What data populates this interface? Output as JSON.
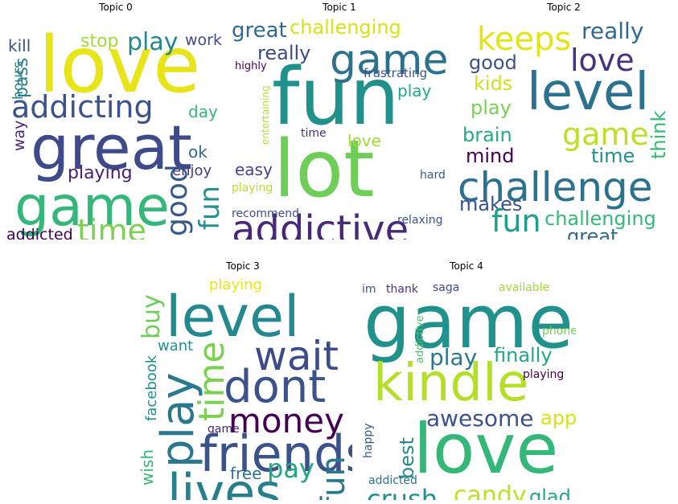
{
  "figure": {
    "panels": [
      {
        "title": "Topic 0",
        "words": [
          {
            "text": "love",
            "color": "#e7e419"
          },
          {
            "text": "great",
            "color": "#3e4a89"
          },
          {
            "text": "game",
            "color": "#35b779"
          },
          {
            "text": "addicting",
            "color": "#3b528b"
          },
          {
            "text": "time",
            "color": "#7ad151"
          },
          {
            "text": "good",
            "color": "#38588c"
          },
          {
            "text": "fun",
            "color": "#21918c"
          },
          {
            "text": "play",
            "color": "#24868e"
          },
          {
            "text": "playing",
            "color": "#482173"
          },
          {
            "text": "stop",
            "color": "#a2da37"
          },
          {
            "text": "kill",
            "color": "#3b528b"
          },
          {
            "text": "pass",
            "color": "#277f8e"
          },
          {
            "text": "hours",
            "color": "#25838e"
          },
          {
            "text": "way",
            "color": "#482878"
          },
          {
            "text": "work",
            "color": "#3e4a89"
          },
          {
            "text": "day",
            "color": "#35b779"
          },
          {
            "text": "ok",
            "color": "#31688e"
          },
          {
            "text": "enjoy",
            "color": "#443983"
          },
          {
            "text": "addicted",
            "color": "#440154"
          }
        ]
      },
      {
        "title": "Topic 1",
        "words": [
          {
            "text": "fun",
            "color": "#21918c"
          },
          {
            "text": "lot",
            "color": "#6ece58"
          },
          {
            "text": "addictive",
            "color": "#482878"
          },
          {
            "text": "game",
            "color": "#2c728e"
          },
          {
            "text": "great",
            "color": "#31688e"
          },
          {
            "text": "challenging",
            "color": "#d8e219"
          },
          {
            "text": "really",
            "color": "#3e4a89"
          },
          {
            "text": "frustrating",
            "color": "#3b528b"
          },
          {
            "text": "highly",
            "color": "#440154"
          },
          {
            "text": "play",
            "color": "#22a884"
          },
          {
            "text": "entertaining",
            "color": "#b5de2b"
          },
          {
            "text": "love",
            "color": "#a2da37"
          },
          {
            "text": "time",
            "color": "#472d7b"
          },
          {
            "text": "easy",
            "color": "#414487"
          },
          {
            "text": "playing",
            "color": "#b5de2b"
          },
          {
            "text": "hard",
            "color": "#38588c"
          },
          {
            "text": "recommend",
            "color": "#3e4a89"
          },
          {
            "text": "relaxing",
            "color": "#3b528b"
          }
        ]
      },
      {
        "title": "Topic 2",
        "words": [
          {
            "text": "keeps",
            "color": "#e2e418"
          },
          {
            "text": "really",
            "color": "#31688e"
          },
          {
            "text": "love",
            "color": "#46327e"
          },
          {
            "text": "level",
            "color": "#2c728e"
          },
          {
            "text": "good",
            "color": "#3b528b"
          },
          {
            "text": "kids",
            "color": "#d0e11c"
          },
          {
            "text": "play",
            "color": "#7ad151"
          },
          {
            "text": "game",
            "color": "#bddf26"
          },
          {
            "text": "think",
            "color": "#38b977"
          },
          {
            "text": "brain",
            "color": "#25ab82"
          },
          {
            "text": "mind",
            "color": "#440154"
          },
          {
            "text": "time",
            "color": "#21918c"
          },
          {
            "text": "challenge",
            "color": "#2c728e"
          },
          {
            "text": "makes",
            "color": "#3b528b"
          },
          {
            "text": "fun",
            "color": "#1f9e89"
          },
          {
            "text": "challenging",
            "color": "#35b779"
          },
          {
            "text": "great",
            "color": "#31688e"
          }
        ]
      },
      {
        "title": "Topic 3",
        "words": [
          {
            "text": "level",
            "color": "#23898e"
          },
          {
            "text": "playing",
            "color": "#e7e419"
          },
          {
            "text": "buy",
            "color": "#6ece58"
          },
          {
            "text": "wait",
            "color": "#3e4a89"
          },
          {
            "text": "dont",
            "color": "#3b528b"
          },
          {
            "text": "time",
            "color": "#7ad151"
          },
          {
            "text": "money",
            "color": "#440154"
          },
          {
            "text": "play",
            "color": "#2a788e"
          },
          {
            "text": "want",
            "color": "#21918c"
          },
          {
            "text": "facebook",
            "color": "#21918c"
          },
          {
            "text": "game",
            "color": "#482173"
          },
          {
            "text": "friends",
            "color": "#3b528b"
          },
          {
            "text": "wish",
            "color": "#35b779"
          },
          {
            "text": "pay",
            "color": "#22a884"
          },
          {
            "text": "free",
            "color": "#2c728e"
          },
          {
            "text": "fun",
            "color": "#2a788e"
          },
          {
            "text": "lives",
            "color": "#277f8e"
          }
        ]
      },
      {
        "title": "Topic 4",
        "words": [
          {
            "text": "game",
            "color": "#21918c"
          },
          {
            "text": "im",
            "color": "#3b528b"
          },
          {
            "text": "thank",
            "color": "#46327e"
          },
          {
            "text": "saga",
            "color": "#3e4a89"
          },
          {
            "text": "available",
            "color": "#a2da37"
          },
          {
            "text": "kindle",
            "color": "#b5de2b"
          },
          {
            "text": "play",
            "color": "#2a788e"
          },
          {
            "text": "finally",
            "color": "#22a884"
          },
          {
            "text": "phone",
            "color": "#6ece58"
          },
          {
            "text": "playing",
            "color": "#440154"
          },
          {
            "text": "addictive",
            "color": "#4ac16d"
          },
          {
            "text": "awesome",
            "color": "#3b528b"
          },
          {
            "text": "app",
            "color": "#d8e219"
          },
          {
            "text": "happy",
            "color": "#38588c"
          },
          {
            "text": "best",
            "color": "#23898e"
          },
          {
            "text": "love",
            "color": "#35b779"
          },
          {
            "text": "addicted",
            "color": "#2c728e"
          },
          {
            "text": "crush",
            "color": "#21918c"
          },
          {
            "text": "candy",
            "color": "#bddf26"
          },
          {
            "text": "glad",
            "color": "#22a884"
          }
        ]
      }
    ]
  }
}
